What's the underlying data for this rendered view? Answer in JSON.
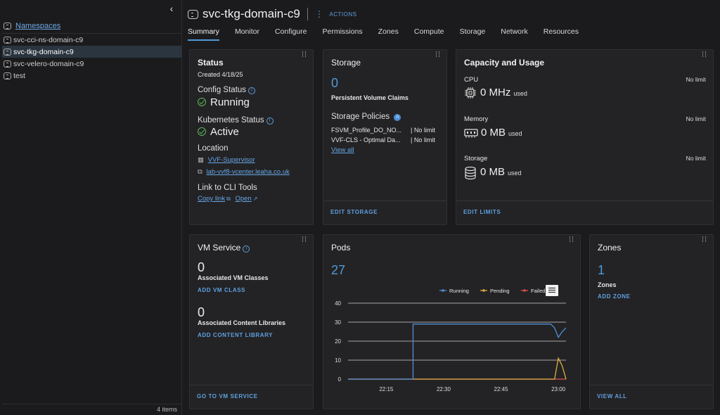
{
  "sidebar": {
    "collapse_glyph": "‹",
    "root_label": "Namespaces",
    "items": [
      {
        "label": "svc-cci-ns-domain-c9"
      },
      {
        "label": "svc-tkg-domain-c9"
      },
      {
        "label": "svc-velero-domain-c9"
      },
      {
        "label": "test"
      }
    ],
    "footer": "4 items"
  },
  "header": {
    "title": "svc-tkg-domain-c9",
    "actions_label": "ACTIONS"
  },
  "tabs": [
    "Summary",
    "Monitor",
    "Configure",
    "Permissions",
    "Zones",
    "Compute",
    "Storage",
    "Network",
    "Resources"
  ],
  "status_card": {
    "title": "Status",
    "created": "Created 4/18/25",
    "config_status_label": "Config Status",
    "config_status_value": "Running",
    "k8s_status_label": "Kubernetes Status",
    "k8s_status_value": "Active",
    "location_label": "Location",
    "location_supervisor": "VVF-Supervisor",
    "location_vcenter": "lab-vvf8-vcenter.leaha.co.uk",
    "cli_label": "Link to CLI Tools",
    "copy_link": "Copy link",
    "open_link": "Open"
  },
  "storage_card": {
    "title": "Storage",
    "pvc_count": "0",
    "pvc_label": "Persistent Volume Claims",
    "policies_label": "Storage Policies",
    "policies_badge": "n",
    "policies": [
      {
        "name": "FSVM_Profile_DO_NO...",
        "limit": "| No limit"
      },
      {
        "name": "VVF-CLS - Optimal Da...",
        "limit": "| No limit"
      }
    ],
    "view_all": "View all",
    "footer": "EDIT STORAGE"
  },
  "capacity_card": {
    "title": "Capacity and Usage",
    "cpu_label": "CPU",
    "cpu_value": "0 MHz",
    "cpu_used": "used",
    "cpu_limit": "No limit",
    "memory_label": "Memory",
    "memory_value": "0 MB",
    "memory_used": "used",
    "memory_limit": "No limit",
    "storage_label": "Storage",
    "storage_value": "0 MB",
    "storage_used": "used",
    "storage_limit": "No limit",
    "footer": "EDIT LIMITS"
  },
  "vm_card": {
    "title": "VM Service",
    "classes_count": "0",
    "classes_label": "Associated VM Classes",
    "add_class": "ADD VM CLASS",
    "libs_count": "0",
    "libs_label": "Associated Content Libraries",
    "add_lib": "ADD CONTENT LIBRARY",
    "footer": "GO TO VM SERVICE"
  },
  "pods_card": {
    "title": "Pods",
    "count": "27"
  },
  "zones_card": {
    "title": "Zones",
    "count": "1",
    "label": "Zones",
    "add": "ADD ZONE",
    "footer": "VIEW ALL"
  },
  "chart_data": {
    "type": "line",
    "x": [
      "22:05",
      "22:10",
      "22:15",
      "22:20",
      "22:22",
      "22:25",
      "22:30",
      "22:35",
      "22:40",
      "22:45",
      "22:50",
      "22:55",
      "22:58",
      "22:59",
      "23:00",
      "23:01",
      "23:02"
    ],
    "series": [
      {
        "name": "Running",
        "color": "#4f8fd8",
        "values": [
          0,
          0,
          0,
          0,
          29,
          29,
          29,
          29,
          29,
          29,
          29,
          29,
          29,
          27,
          22,
          25,
          27
        ]
      },
      {
        "name": "Pending",
        "color": "#e0b040",
        "values": [
          0,
          0,
          0,
          0,
          0,
          0,
          0,
          0,
          0,
          0,
          0,
          0,
          0,
          0,
          11,
          7,
          0
        ]
      },
      {
        "name": "Failed",
        "color": "#e05050",
        "values": [
          0,
          0,
          0,
          0,
          0,
          0,
          0,
          0,
          0,
          0,
          0,
          0,
          0,
          0,
          0,
          0,
          0
        ]
      }
    ],
    "xticks": [
      "22:15",
      "22:30",
      "22:45",
      "23:00"
    ],
    "yticks": [
      "0",
      "10",
      "20",
      "30",
      "40"
    ],
    "ylim": [
      0,
      40
    ],
    "legend": "top-right",
    "grid": true
  }
}
